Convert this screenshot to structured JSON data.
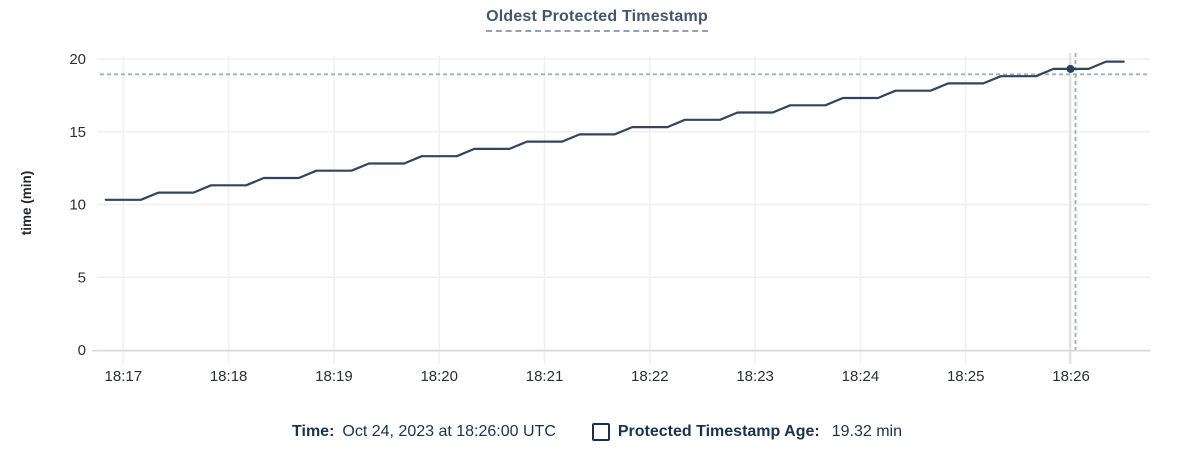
{
  "chart_data": {
    "type": "line",
    "title": "Oldest Protected Timestamp",
    "xlabel": "",
    "ylabel": "time (min)",
    "ylim": [
      0,
      20
    ],
    "y_ticks": [
      0,
      5,
      10,
      15,
      20
    ],
    "x_ticks": [
      "18:17",
      "18:18",
      "18:19",
      "18:20",
      "18:21",
      "18:22",
      "18:23",
      "18:24",
      "18:25",
      "18:26"
    ],
    "x_range": [
      "18:16:45",
      "18:26:45"
    ],
    "grid": true,
    "legend_position": "bottom",
    "x_start": "18:16:50",
    "x_interval_seconds": 10,
    "series": [
      {
        "name": "Protected Timestamp Age",
        "unit": "min",
        "values": [
          10.32,
          10.32,
          10.32,
          10.82,
          10.82,
          10.82,
          11.32,
          11.32,
          11.32,
          11.82,
          11.82,
          11.82,
          12.32,
          12.32,
          12.32,
          12.82,
          12.82,
          12.82,
          13.32,
          13.32,
          13.32,
          13.82,
          13.82,
          13.82,
          14.32,
          14.32,
          14.32,
          14.82,
          14.82,
          14.82,
          15.32,
          15.32,
          15.32,
          15.82,
          15.82,
          15.82,
          16.32,
          16.32,
          16.32,
          16.82,
          16.82,
          16.82,
          17.32,
          17.32,
          17.32,
          17.82,
          17.82,
          17.82,
          18.32,
          18.32,
          18.32,
          18.82,
          18.82,
          18.82,
          19.32,
          19.32,
          19.32,
          19.82,
          19.82
        ]
      }
    ],
    "hover": {
      "time": "18:26:00",
      "value": 19.32
    }
  },
  "legend": {
    "time_label": "Time:",
    "time_value": "Oct 24, 2023 at 18:26:00 UTC",
    "series_label": "Protected Timestamp Age:",
    "series_value": "19.32 min"
  },
  "colors": {
    "line": "#324460",
    "dot": "#2e3f5a",
    "crosshair": "#9fb1c1",
    "grid": "#f0f0f1",
    "axis": "#d9dadb",
    "hover_band": "#e3e4e6",
    "title_text": "#44566e",
    "legend_text": "#173352"
  }
}
